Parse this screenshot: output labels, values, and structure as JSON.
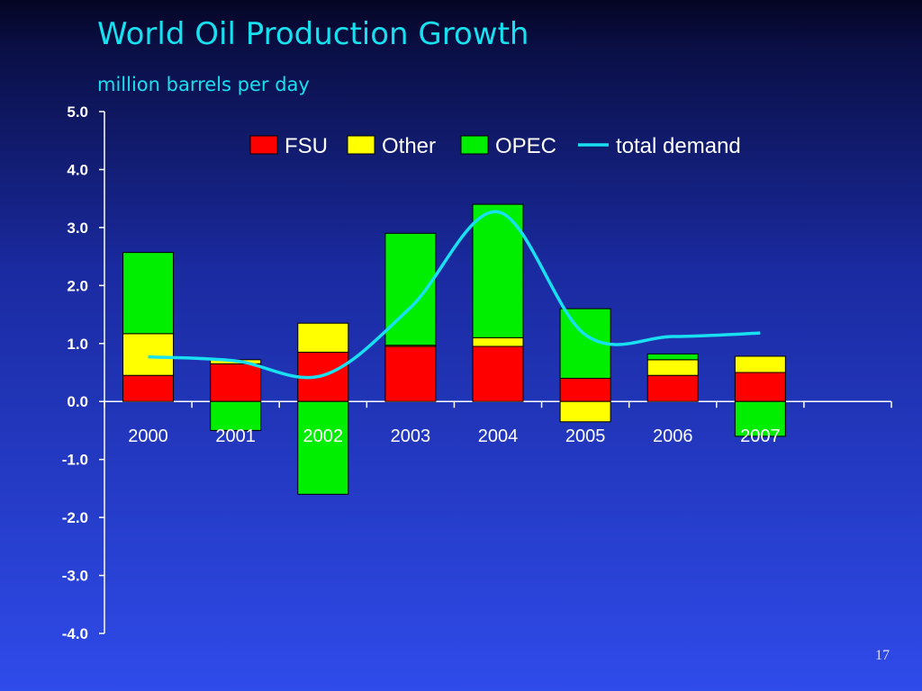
{
  "page": {
    "title": "World Oil Production Growth",
    "subtitle": "million barrels per day",
    "page_number": "17"
  },
  "colors": {
    "FSU": "#ff0000",
    "Other": "#ffff00",
    "OPEC": "#00ee00",
    "total demand": "#19e0f0",
    "axis": "#ffffff"
  },
  "chart_data": {
    "type": "bar",
    "stacked": true,
    "categories": [
      "2000",
      "2001",
      "2002",
      "2003",
      "2004",
      "2005",
      "2006",
      "2007"
    ],
    "series": [
      {
        "name": "FSU",
        "type": "bar",
        "values": [
          0.45,
          0.65,
          0.85,
          0.95,
          0.95,
          0.4,
          0.45,
          0.5
        ]
      },
      {
        "name": "Other",
        "type": "bar",
        "values": [
          0.72,
          0.07,
          0.5,
          0.02,
          0.15,
          -0.35,
          0.27,
          0.28
        ]
      },
      {
        "name": "OPEC",
        "type": "bar",
        "values": [
          1.4,
          -0.5,
          -1.6,
          1.93,
          2.3,
          1.2,
          0.1,
          -0.6
        ]
      },
      {
        "name": "total demand",
        "type": "line",
        "values": [
          0.77,
          0.7,
          0.45,
          1.62,
          3.27,
          1.15,
          1.12,
          1.18
        ]
      }
    ],
    "ylim": [
      -4.0,
      5.0
    ],
    "yticks": [
      "5.0",
      "4.0",
      "3.0",
      "2.0",
      "1.0",
      "0.0",
      "-1.0",
      "-2.0",
      "-3.0",
      "-4.0"
    ],
    "legend_position": "top",
    "grid": false
  }
}
